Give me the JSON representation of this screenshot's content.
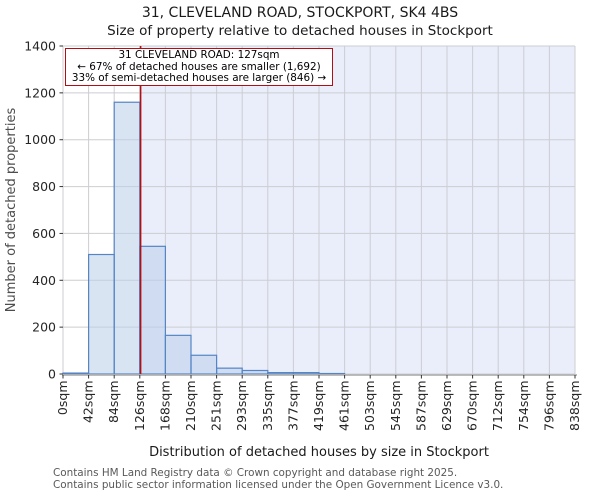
{
  "title": "31, CLEVELAND ROAD, STOCKPORT, SK4 4BS",
  "subtitle": "Size of property relative to detached houses in Stockport",
  "chart_data": {
    "type": "bar",
    "categories": [
      "0sqm",
      "42sqm",
      "84sqm",
      "126sqm",
      "168sqm",
      "210sqm",
      "251sqm",
      "293sqm",
      "335sqm",
      "377sqm",
      "419sqm",
      "461sqm",
      "503sqm",
      "545sqm",
      "587sqm",
      "629sqm",
      "670sqm",
      "712sqm",
      "754sqm",
      "796sqm",
      "838sqm"
    ],
    "values": [
      4,
      510,
      1160,
      545,
      165,
      80,
      25,
      15,
      6,
      6,
      2,
      0,
      0,
      0,
      0,
      0,
      0,
      0,
      0,
      0
    ],
    "title": "Size of property relative to detached houses in Stockport",
    "xlabel": "Distribution of detached houses by size in Stockport",
    "ylabel": "Number of detached properties",
    "xlim": [
      0,
      838
    ],
    "ylim": [
      0,
      1400
    ],
    "ytick_step": 200,
    "yticks": [
      0,
      200,
      400,
      600,
      800,
      1000,
      1200,
      1400
    ],
    "grid": true,
    "legend": false,
    "marker": {
      "value_sqm": 127,
      "shaded_region": "right-of-marker"
    }
  },
  "annotation": {
    "line1": "31 CLEVELAND ROAD: 127sqm",
    "line2": "← 67% of detached houses are smaller (1,692)",
    "line3": "33% of semi-detached houses are larger (846) →"
  },
  "footer": {
    "line1": "Contains HM Land Registry data © Crown copyright and database right 2025.",
    "line2": "Contains public sector information licensed under the Open Government Licence v3.0."
  },
  "colors": {
    "bar_fill": "#b9cde9",
    "bar_edge": "#5585c5",
    "marker_line": "#b01015",
    "annotation_border": "#b01015",
    "shaded_region": "#e9eefa",
    "gridline": "#cdcdd2",
    "axis_line": "#b3b3b3",
    "tick_label": "#262626",
    "axis_title": "#1a1a1a",
    "ylabel_color": "#4d4d4d",
    "footer_color": "#595959"
  }
}
